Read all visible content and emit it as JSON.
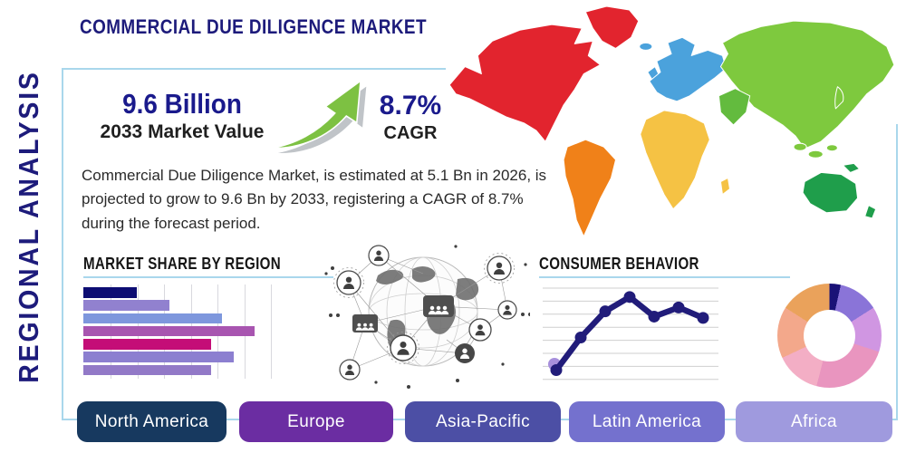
{
  "title": "COMMERCIAL DUE DILIGENCE MARKET",
  "side_label": "REGIONAL ANALYSIS",
  "stats": {
    "market_value": "9.6 Billion",
    "market_value_caption": "2033 Market Value",
    "cagr_value": "8.7%",
    "cagr_caption": "CAGR"
  },
  "description": "Commercial Due Diligence Market, is estimated at 5.1 Bn in 2026, is projected to grow to 9.6 Bn by 2033, registering a CAGR of 8.7% during the forecast period.",
  "accent_colors": {
    "frame_blue": "#a9d7ec",
    "navy_text": "#1d1b7b",
    "arrow_green": "#7dc142"
  },
  "map_colors": {
    "north_america": "#e2242e",
    "greenland": "#e2242e",
    "south_america": "#f08119",
    "europe": "#4ba2dc",
    "africa": "#f5c244",
    "asia": "#7ec93e",
    "middle_east": "#63bb3e",
    "oceania": "#1f9e4b"
  },
  "chart_data": [
    {
      "type": "bar",
      "title": "MARKET SHARE BY REGION",
      "orientation": "horizontal",
      "categories": [
        "",
        "",
        "",
        "",
        "",
        "",
        ""
      ],
      "values": [
        28,
        45,
        73,
        90,
        67,
        79,
        67
      ],
      "value_units": "relative share (percent of scale, no axis labels shown)",
      "colors": [
        "#0d0d73",
        "#9181cf",
        "#7e97dd",
        "#a855b0",
        "#c40d77",
        "#8c7fd0",
        "#9279c7"
      ],
      "grid": "vertical gridlines, no tick labels",
      "xlim": [
        0,
        100
      ]
    },
    {
      "type": "line",
      "title": "CONSUMER BEHAVIOR",
      "x": [
        1,
        2,
        3,
        4,
        5,
        6,
        7
      ],
      "values": [
        0.8,
        3.3,
        5.3,
        6.4,
        4.9,
        5.6,
        4.8
      ],
      "value_units": "relative units (no axis labels shown)",
      "ylim": [
        0,
        7.5
      ],
      "line_color": "#211c7a",
      "marker_color": "#211c7a",
      "first_point_halo_color": "#a78fdc",
      "grid": "horizontal gridlines only, no tick labels"
    },
    {
      "type": "pie",
      "title": "",
      "style": "donut",
      "slices": [
        {
          "pct": 3.5,
          "color": "#1a1277"
        },
        {
          "pct": 12.5,
          "color": "#8a74d8"
        },
        {
          "pct": 14,
          "color": "#d096e2"
        },
        {
          "pct": 24,
          "color": "#e995bf"
        },
        {
          "pct": 14,
          "color": "#f3aec5"
        },
        {
          "pct": 16,
          "color": "#f3a88b"
        },
        {
          "pct": 16,
          "color": "#eaa25b"
        }
      ],
      "legend": "none shown"
    }
  ],
  "regions": [
    {
      "label": "North America",
      "color": "#17395f"
    },
    {
      "label": "Europe",
      "color": "#6b2da2"
    },
    {
      "label": "Asia-Pacific",
      "color": "#4c4fa5"
    },
    {
      "label": "Latin America",
      "color": "#7471ce"
    },
    {
      "label": "Africa",
      "color": "#9f9ade"
    }
  ],
  "icons": {
    "growth_arrow": "curved up-right green arrow",
    "globe_network": "grayscale globe with connected people nodes"
  }
}
